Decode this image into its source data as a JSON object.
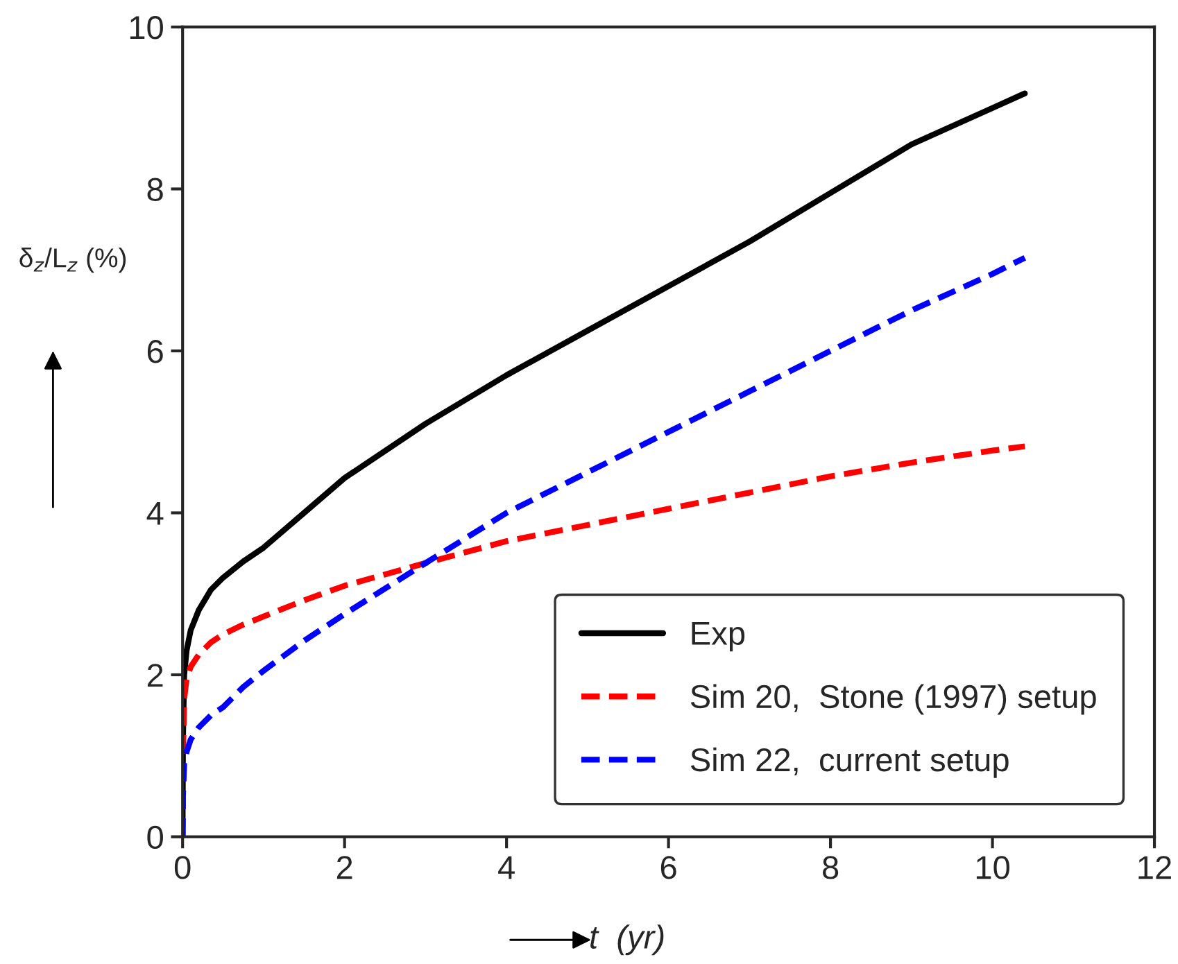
{
  "chart_data": {
    "type": "line",
    "xlabel": "t  (yr)",
    "ylabel": "δ$_{z}$/L$_{z}$ (%)",
    "xlim": [
      0,
      12
    ],
    "ylim": [
      0,
      10
    ],
    "xticks": [
      0,
      2,
      4,
      6,
      8,
      10,
      12
    ],
    "yticks": [
      0,
      2,
      4,
      6,
      8,
      10
    ],
    "grid": false,
    "legend": "bottom right",
    "series": [
      {
        "name": "Exp",
        "color": "#000000",
        "line_style": "solid",
        "x": [
          0,
          0.005,
          0.02,
          0.05,
          0.1,
          0.2,
          0.35,
          0.5,
          0.75,
          1,
          1.5,
          2,
          3,
          4,
          5,
          6,
          7,
          8,
          9,
          10,
          10.4
        ],
        "values": [
          0,
          1.2,
          2.0,
          2.3,
          2.55,
          2.8,
          3.05,
          3.2,
          3.4,
          3.57,
          4.0,
          4.43,
          5.1,
          5.7,
          6.25,
          6.8,
          7.35,
          7.95,
          8.55,
          9.0,
          9.18
        ]
      },
      {
        "name": "Sim 20,  Stone (1997) setup",
        "color": "#ff0000",
        "line_style": "dashed",
        "x": [
          0,
          0.005,
          0.02,
          0.05,
          0.1,
          0.2,
          0.35,
          0.5,
          0.75,
          1,
          1.5,
          2,
          3,
          4,
          5,
          6,
          7,
          8,
          9,
          10,
          10.4
        ],
        "values": [
          0,
          1.0,
          1.7,
          1.95,
          2.1,
          2.25,
          2.4,
          2.5,
          2.62,
          2.72,
          2.92,
          3.1,
          3.38,
          3.65,
          3.85,
          4.05,
          4.25,
          4.45,
          4.62,
          4.77,
          4.82
        ]
      },
      {
        "name": "Sim 22,  current setup",
        "color": "#0000ff",
        "line_style": "dashed",
        "x": [
          0,
          0.005,
          0.02,
          0.05,
          0.1,
          0.2,
          0.35,
          0.5,
          0.75,
          1,
          1.5,
          2,
          3,
          4,
          5,
          6,
          7,
          8,
          9,
          10,
          10.4
        ],
        "values": [
          0,
          0.5,
          0.9,
          1.05,
          1.2,
          1.35,
          1.5,
          1.6,
          1.85,
          2.05,
          2.42,
          2.75,
          3.38,
          4.0,
          4.5,
          5.0,
          5.5,
          6.0,
          6.5,
          6.95,
          7.15
        ]
      }
    ]
  }
}
